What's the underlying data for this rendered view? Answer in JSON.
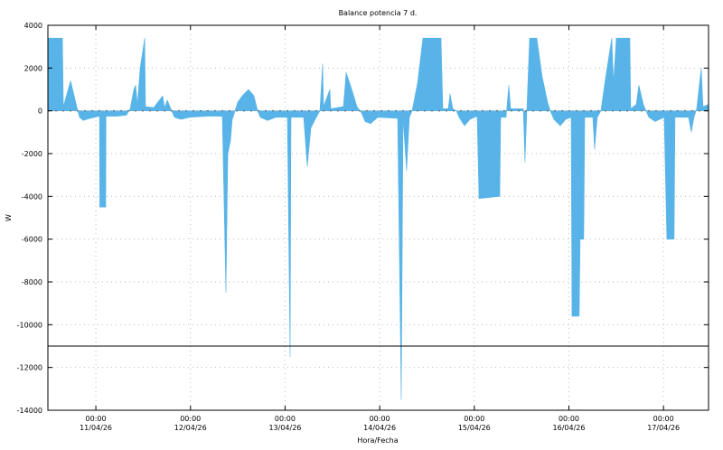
{
  "chart_data": {
    "type": "area",
    "title": "Balance potencia 7 d.",
    "xlabel": "Hora/Fecha",
    "ylabel": "W",
    "ylim": [
      -14000,
      4000
    ],
    "yticks": [
      4000,
      2000,
      0,
      -2000,
      -4000,
      -6000,
      -8000,
      -10000,
      -12000,
      -14000
    ],
    "xlim": [
      "10/04/26 11:50",
      "17/04/26 11:25"
    ],
    "xticks": [
      {
        "time": "00:00",
        "date": "11/04/26"
      },
      {
        "time": "00:00",
        "date": "12/04/26"
      },
      {
        "time": "00:00",
        "date": "13/04/26"
      },
      {
        "time": "00:00",
        "date": "14/04/26"
      },
      {
        "time": "00:00",
        "date": "15/04/26"
      },
      {
        "time": "00:00",
        "date": "16/04/26"
      },
      {
        "time": "00:00",
        "date": "17/04/26"
      }
    ],
    "grid": true,
    "reference_line": -11000,
    "colors": {
      "fill": "#58b4e8",
      "grid": "#bbbbbb",
      "axis": "#000000"
    },
    "series": [
      {
        "points": [
          [
            "10/04/26 11:51",
            3400
          ],
          [
            "10/04/26 15:31",
            3400
          ],
          [
            "10/04/26 15:45",
            200
          ],
          [
            "10/04/26 17:35",
            1400
          ],
          [
            "10/04/26 19:25",
            0
          ],
          [
            "10/04/26 19:52",
            -300
          ],
          [
            "10/04/26 20:47",
            -450
          ],
          [
            "10/04/26 22:37",
            -350
          ],
          [
            "11/04/26 00:55",
            -250
          ],
          [
            "11/04/26 01:00",
            -4500
          ],
          [
            "11/04/26 02:31",
            -4500
          ],
          [
            "11/04/26 02:35",
            -250
          ],
          [
            "11/04/26 05:30",
            -250
          ],
          [
            "11/04/26 07:47",
            -200
          ],
          [
            "11/04/26 08:43",
            100
          ],
          [
            "11/04/26 09:38",
            1000
          ],
          [
            "11/04/26 10:05",
            1200
          ],
          [
            "11/04/26 10:32",
            300
          ],
          [
            "11/04/26 11:14",
            2000
          ],
          [
            "11/04/26 12:23",
            3400
          ],
          [
            "11/04/26 12:36",
            200
          ],
          [
            "11/04/26 14:40",
            150
          ],
          [
            "11/04/26 16:58",
            700
          ],
          [
            "11/04/26 17:25",
            150
          ],
          [
            "11/04/26 18:07",
            500
          ],
          [
            "11/04/26 19:15",
            0
          ],
          [
            "11/04/26 19:56",
            -300
          ],
          [
            "11/04/26 21:33",
            -400
          ],
          [
            "11/04/26 23:50",
            -300
          ],
          [
            "12/04/26 04:25",
            -250
          ],
          [
            "12/04/26 08:05",
            -250
          ],
          [
            "12/04/26 09:00",
            -8500
          ],
          [
            "12/04/26 09:28",
            -2000
          ],
          [
            "12/04/26 10:09",
            -1400
          ],
          [
            "12/04/26 10:36",
            -400
          ],
          [
            "12/04/26 11:18",
            0
          ],
          [
            "12/04/26 11:59",
            400
          ],
          [
            "12/04/26 13:08",
            700
          ],
          [
            "12/04/26 14:44",
            1000
          ],
          [
            "12/04/26 16:06",
            700
          ],
          [
            "12/04/26 17:02",
            0
          ],
          [
            "12/04/26 17:43",
            -300
          ],
          [
            "12/04/26 19:33",
            -450
          ],
          [
            "12/04/26 21:37",
            -300
          ],
          [
            "13/04/26 00:35",
            -300
          ],
          [
            "13/04/26 01:17",
            -11500
          ],
          [
            "13/04/26 01:30",
            -300
          ],
          [
            "13/04/26 04:43",
            -300
          ],
          [
            "13/04/26 05:38",
            -2600
          ],
          [
            "13/04/26 06:33",
            -800
          ],
          [
            "13/04/26 07:55",
            -300
          ],
          [
            "13/04/26 08:50",
            0
          ],
          [
            "13/04/26 09:32",
            2200
          ],
          [
            "13/04/26 09:45",
            200
          ],
          [
            "13/04/26 11:22",
            1000
          ],
          [
            "13/04/26 11:35",
            100
          ],
          [
            "13/04/26 14:48",
            200
          ],
          [
            "13/04/26 15:29",
            1800
          ],
          [
            "13/04/26 17:05",
            900
          ],
          [
            "13/04/26 18:14",
            200
          ],
          [
            "13/04/26 19:23",
            -100
          ],
          [
            "13/04/26 20:18",
            -500
          ],
          [
            "13/04/26 21:41",
            -600
          ],
          [
            "13/04/26 23:31",
            -300
          ],
          [
            "14/04/26 04:33",
            -350
          ],
          [
            "14/04/26 05:28",
            -13500
          ],
          [
            "14/04/26 05:56",
            -300
          ],
          [
            "14/04/26 06:50",
            -2800
          ],
          [
            "14/04/26 07:32",
            -300
          ],
          [
            "14/04/26 08:13",
            0
          ],
          [
            "14/04/26 09:36",
            1300
          ],
          [
            "14/04/26 10:58",
            3400
          ],
          [
            "14/04/26 15:33",
            3400
          ],
          [
            "14/04/26 16:01",
            100
          ],
          [
            "14/04/26 17:23",
            100
          ],
          [
            "14/04/26 17:51",
            800
          ],
          [
            "14/04/26 18:32",
            100
          ],
          [
            "14/04/26 19:27",
            0
          ],
          [
            "14/04/26 20:08",
            -300
          ],
          [
            "14/04/26 21:31",
            -700
          ],
          [
            "14/04/26 22:53",
            -400
          ],
          [
            "15/04/26 00:43",
            -250
          ],
          [
            "15/04/26 01:11",
            -4100
          ],
          [
            "15/04/26 06:27",
            -4000
          ],
          [
            "15/04/26 06:41",
            -300
          ],
          [
            "15/04/26 08:04",
            -300
          ],
          [
            "15/04/26 08:45",
            1200
          ],
          [
            "15/04/26 09:12",
            100
          ],
          [
            "15/04/26 12:25",
            100
          ],
          [
            "15/04/26 12:52",
            -2400
          ],
          [
            "15/04/26 13:20",
            100
          ],
          [
            "15/04/26 14:01",
            3400
          ],
          [
            "15/04/26 15:51",
            3400
          ],
          [
            "15/04/26 17:13",
            1600
          ],
          [
            "15/04/26 18:36",
            400
          ],
          [
            "15/04/26 19:17",
            0
          ],
          [
            "15/04/26 20:12",
            -400
          ],
          [
            "15/04/26 21:49",
            -700
          ],
          [
            "15/04/26 23:11",
            -400
          ],
          [
            "16/04/26 00:34",
            -300
          ],
          [
            "16/04/26 00:47",
            -9600
          ],
          [
            "16/04/26 02:37",
            -9600
          ],
          [
            "16/04/26 02:51",
            -6000
          ],
          [
            "16/04/26 03:46",
            -6000
          ],
          [
            "16/04/26 04:00",
            -300
          ],
          [
            "16/04/26 06:04",
            -300
          ],
          [
            "16/04/26 06:31",
            -1800
          ],
          [
            "16/04/26 07:12",
            -300
          ],
          [
            "16/04/26 08:07",
            0
          ],
          [
            "16/04/26 09:16",
            1500
          ],
          [
            "16/04/26 10:52",
            3400
          ],
          [
            "16/04/26 11:20",
            1300
          ],
          [
            "16/04/26 12:01",
            3400
          ],
          [
            "16/04/26 15:27",
            3400
          ],
          [
            "16/04/26 15:41",
            100
          ],
          [
            "16/04/26 17:04",
            300
          ],
          [
            "16/04/26 17:44",
            1200
          ],
          [
            "16/04/26 18:53",
            300
          ],
          [
            "16/04/26 19:35",
            0
          ],
          [
            "16/04/26 20:16",
            -300
          ],
          [
            "16/04/26 21:52",
            -500
          ],
          [
            "17/04/26 00:10",
            -300
          ],
          [
            "17/04/26 00:51",
            -6000
          ],
          [
            "17/04/26 02:41",
            -6000
          ],
          [
            "17/04/26 02:55",
            -300
          ],
          [
            "17/04/26 06:21",
            -300
          ],
          [
            "17/04/26 07:02",
            -1000
          ],
          [
            "17/04/26 07:43",
            -300
          ],
          [
            "17/04/26 08:25",
            100
          ],
          [
            "17/04/26 09:34",
            2000
          ],
          [
            "17/04/26 10:01",
            200
          ],
          [
            "17/04/26 11:24",
            300
          ]
        ]
      }
    ]
  }
}
